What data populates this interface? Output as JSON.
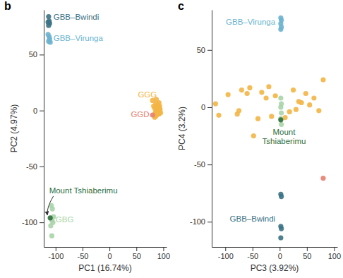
{
  "chart_data": [
    {
      "type": "scatter",
      "title": "b",
      "x_label": "PC1 (16.74%)",
      "y_label": "PC2 (4.97%)",
      "xlim": [
        -122,
        106
      ],
      "ylim": [
        -122,
        90
      ],
      "xticks": [
        -100,
        -50,
        0,
        50,
        100
      ],
      "yticks": [
        -100,
        -50,
        0,
        50
      ],
      "series": [
        {
          "name": "GBB–Bwindi",
          "color": "#3b7285",
          "x": [
            -113,
            -112,
            -114,
            -111,
            -113
          ],
          "values": [
            84,
            80,
            79,
            78,
            76
          ]
        },
        {
          "name": "GBB–Virunga",
          "color": "#6bb3cf",
          "x": [
            -114,
            -112,
            -111,
            -113,
            -110
          ],
          "values": [
            68,
            66,
            64,
            62,
            61
          ]
        },
        {
          "name": "GGG",
          "color": "#f3b544",
          "x": [
            80,
            82,
            84,
            85,
            86,
            87,
            88,
            88,
            89,
            90,
            90,
            91,
            92,
            92,
            93,
            93,
            94,
            95,
            86,
            84,
            89,
            91,
            87,
            90,
            93
          ],
          "values": [
            9,
            4,
            2,
            -2,
            6,
            0,
            3,
            -4,
            1,
            5,
            -1,
            2,
            -3,
            7,
            0,
            4,
            1,
            -2,
            -5,
            -6,
            -1,
            3,
            10,
            -3,
            2
          ]
        },
        {
          "name": "GGD",
          "color": "#e8806f",
          "x": [
            80
          ],
          "values": [
            -4
          ]
        },
        {
          "name": "GBG",
          "color": "#a9d4a8",
          "x": [
            -108,
            -106,
            -104,
            -107,
            -105,
            -109,
            -107
          ],
          "values": [
            -85,
            -88,
            -95,
            -98,
            -100,
            -103,
            -112
          ]
        },
        {
          "name": "Mount Tshiaberimu",
          "color": "#2f6e3c",
          "x": [
            -110
          ],
          "values": [
            -96
          ]
        }
      ]
    },
    {
      "type": "scatter",
      "title": "c",
      "x_label": "PC3 (3.92%)",
      "y_label": "PC4 (3.2%)",
      "xlim": [
        -125,
        106
      ],
      "ylim": [
        -122,
        85
      ],
      "xticks": [
        -100,
        -50,
        0,
        50,
        100
      ],
      "yticks": [
        -100,
        -50,
        0,
        50
      ],
      "series": [
        {
          "name": "GBB–Bwindi",
          "color": "#3b7285",
          "x": [
            2,
            3,
            2,
            3,
            2
          ],
          "values": [
            -76,
            -78,
            -104,
            -106,
            -114
          ]
        },
        {
          "name": "GBB–Virunga",
          "color": "#6bb3cf",
          "x": [
            2,
            3,
            2,
            3,
            2
          ],
          "values": [
            78,
            76,
            73,
            70,
            68
          ]
        },
        {
          "color": "#f3b544",
          "x": [
            -118,
            -112,
            -95,
            -78,
            -70,
            -75,
            -60,
            -55,
            -48,
            -40,
            -33,
            -25,
            -20,
            -15,
            -8,
            10,
            18,
            25,
            30,
            35,
            40,
            48,
            55,
            63,
            72,
            80
          ],
          "values": [
            3,
            -7,
            11,
            -6,
            15,
            -3,
            12,
            17,
            -25,
            -10,
            13,
            8,
            18,
            -8,
            10,
            -9,
            -4,
            15,
            -2,
            5,
            4,
            12,
            2,
            8,
            -3,
            24
          ]
        },
        {
          "color": "#e8806f",
          "x": [
            80
          ],
          "values": [
            -62
          ]
        },
        {
          "color": "#a9d4a8",
          "x": [
            2,
            3,
            2,
            3,
            2,
            3
          ],
          "values": [
            8,
            3,
            0,
            -5,
            -10,
            -15
          ]
        },
        {
          "name": "Mount Tshiaberimu",
          "color": "#2f6e3c",
          "x": [
            2
          ],
          "values": [
            -11
          ]
        }
      ]
    }
  ]
}
